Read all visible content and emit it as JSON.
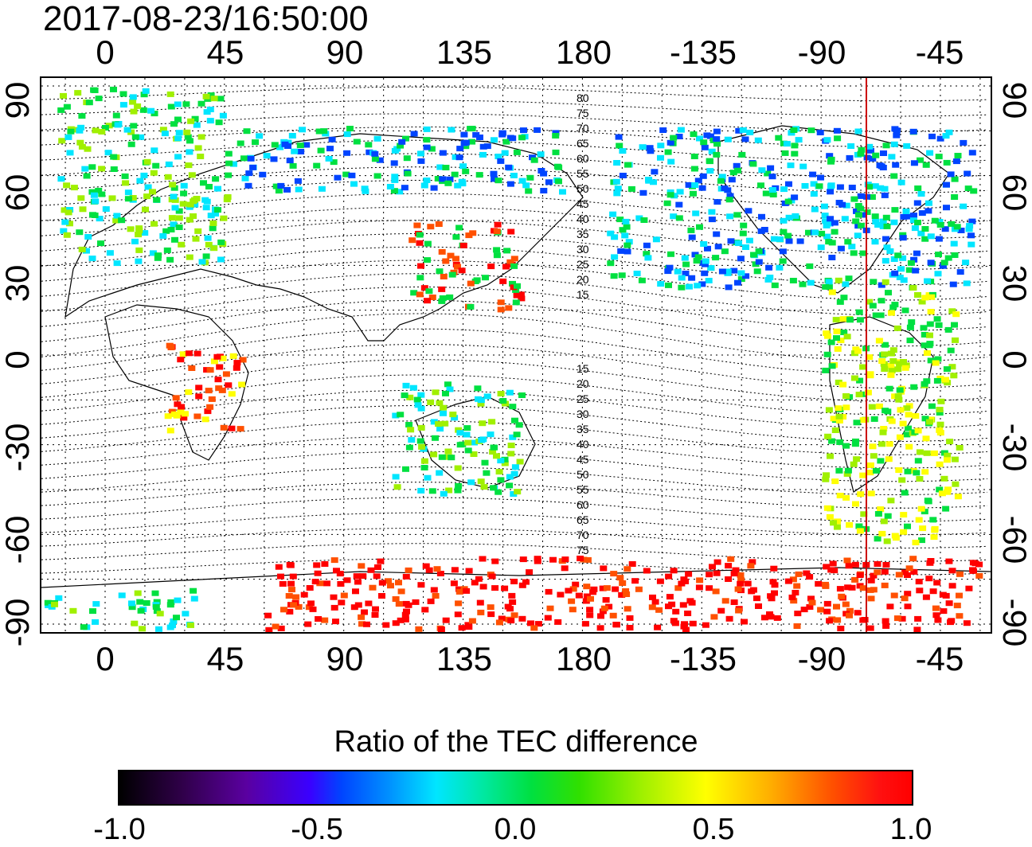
{
  "timestamp": "2017-08-23/16:50:00",
  "title": "Ratio of the TEC difference",
  "axes": {
    "lon_labels": [
      "0",
      "45",
      "90",
      "135",
      "180",
      "-135",
      "-90",
      "-45"
    ],
    "lat_labels": [
      "90",
      "60",
      "30",
      "0",
      "-30",
      "-60",
      "-90"
    ]
  },
  "colorbar": {
    "range": [
      -1.0,
      1.0
    ],
    "tick_labels": [
      "-1.0",
      "-0.5",
      "0.0",
      "0.5",
      "1.0"
    ],
    "colors": [
      "#000000",
      "#5a00a0",
      "#0044ff",
      "#00e6ff",
      "#00e040",
      "#a0f000",
      "#ffff00",
      "#ff5000",
      "#ff0000"
    ]
  },
  "map": {
    "projection": "equirectangular",
    "lon_range": [
      -20,
      340
    ],
    "lat_range": [
      -90,
      90
    ],
    "contour_labels": [
      "80",
      "75",
      "70",
      "65",
      "60",
      "55",
      "50",
      "45",
      "40",
      "35",
      "30",
      "25",
      "20",
      "15",
      "15",
      "20",
      "25",
      "30",
      "35",
      "40",
      "45",
      "50",
      "55",
      "60",
      "65",
      "70",
      "75"
    ],
    "grid": "dotted every 15°",
    "terminator_line_lon": -70
  }
}
